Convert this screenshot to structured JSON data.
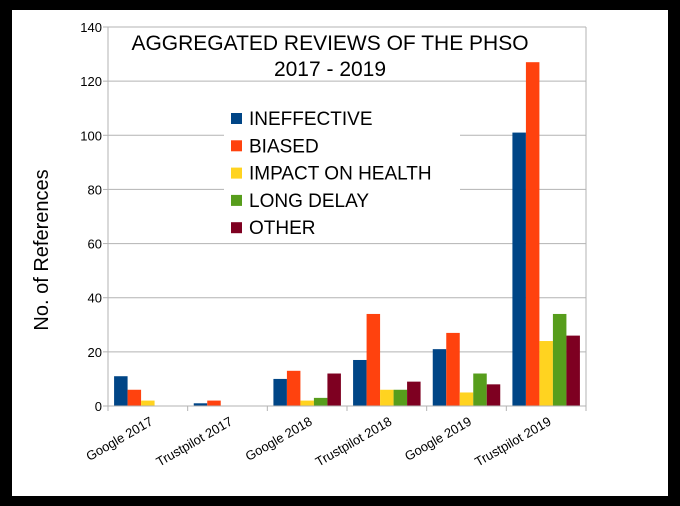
{
  "chart_data": {
    "type": "bar",
    "title": "AGGREGATED REVIEWS OF THE PHSO",
    "subtitle": "2017 - 2019",
    "xlabel": "",
    "ylabel": "No. of References",
    "ylim": [
      0,
      140
    ],
    "yticks": [
      0,
      20,
      40,
      60,
      80,
      100,
      120,
      140
    ],
    "grid": true,
    "legend_position": "top-left",
    "categories": [
      "Google 2017",
      "Trustpilot 2017",
      "Google 2018",
      "Trustpilot 2018",
      "Google 2019",
      "Trustpilot 2019"
    ],
    "series": [
      {
        "name": "INEFFECTIVE",
        "color": "#004586",
        "values": [
          11,
          1,
          10,
          17,
          21,
          101
        ]
      },
      {
        "name": "BIASED",
        "color": "#ff420e",
        "values": [
          6,
          2,
          13,
          34,
          27,
          127
        ]
      },
      {
        "name": "IMPACT ON HEALTH",
        "color": "#ffd320",
        "values": [
          2,
          0,
          2,
          6,
          5,
          24
        ]
      },
      {
        "name": "LONG DELAY",
        "color": "#579d1c",
        "values": [
          0,
          0,
          3,
          6,
          12,
          34
        ]
      },
      {
        "name": "OTHER",
        "color": "#7e0021",
        "values": [
          0,
          0,
          12,
          9,
          8,
          26
        ]
      }
    ]
  }
}
